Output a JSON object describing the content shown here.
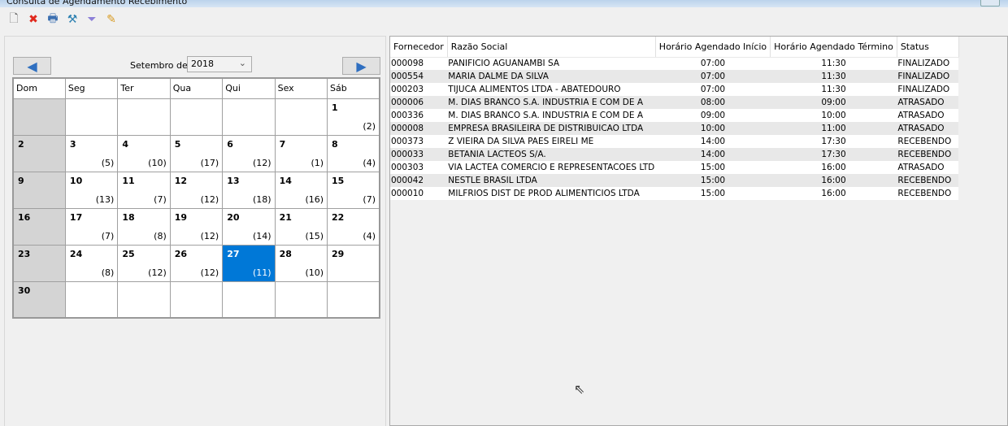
{
  "window": {
    "title": "Consulta de Agendamento Recebimento"
  },
  "toolbar": [
    {
      "icon": "new-document-icon",
      "glyph": "🗋",
      "color": "#666"
    },
    {
      "icon": "delete-icon",
      "glyph": "✖",
      "color": "#e0281c"
    },
    {
      "icon": "print-icon",
      "glyph": "🖶",
      "color": "#3b6fb0"
    },
    {
      "icon": "tools-icon",
      "glyph": "⚒",
      "color": "#2a7fb0"
    },
    {
      "icon": "filter-icon",
      "glyph": "⏷",
      "color": "#8c7fd8"
    },
    {
      "icon": "edit-icon",
      "glyph": "✎",
      "color": "#d89a20"
    }
  ],
  "calendar": {
    "month_label": "Setembro de",
    "year": "2018",
    "weekdays": [
      "Dom",
      "Seg",
      "Ter",
      "Qua",
      "Qui",
      "Sex",
      "Sáb"
    ],
    "selected_day": "27",
    "weeks": [
      [
        {
          "d": "",
          "c": ""
        },
        {
          "d": "",
          "c": ""
        },
        {
          "d": "",
          "c": ""
        },
        {
          "d": "",
          "c": ""
        },
        {
          "d": "",
          "c": ""
        },
        {
          "d": "",
          "c": ""
        },
        {
          "d": "1",
          "c": "(2)"
        }
      ],
      [
        {
          "d": "2",
          "c": ""
        },
        {
          "d": "3",
          "c": "(5)"
        },
        {
          "d": "4",
          "c": "(10)"
        },
        {
          "d": "5",
          "c": "(17)"
        },
        {
          "d": "6",
          "c": "(12)"
        },
        {
          "d": "7",
          "c": "(1)"
        },
        {
          "d": "8",
          "c": "(4)"
        }
      ],
      [
        {
          "d": "9",
          "c": ""
        },
        {
          "d": "10",
          "c": "(13)"
        },
        {
          "d": "11",
          "c": "(7)"
        },
        {
          "d": "12",
          "c": "(12)"
        },
        {
          "d": "13",
          "c": "(18)"
        },
        {
          "d": "14",
          "c": "(16)"
        },
        {
          "d": "15",
          "c": "(7)"
        }
      ],
      [
        {
          "d": "16",
          "c": ""
        },
        {
          "d": "17",
          "c": "(7)"
        },
        {
          "d": "18",
          "c": "(8)"
        },
        {
          "d": "19",
          "c": "(12)"
        },
        {
          "d": "20",
          "c": "(14)"
        },
        {
          "d": "21",
          "c": "(15)"
        },
        {
          "d": "22",
          "c": "(4)"
        }
      ],
      [
        {
          "d": "23",
          "c": ""
        },
        {
          "d": "24",
          "c": "(8)"
        },
        {
          "d": "25",
          "c": "(12)"
        },
        {
          "d": "26",
          "c": "(12)"
        },
        {
          "d": "27",
          "c": "(11)"
        },
        {
          "d": "28",
          "c": "(10)"
        },
        {
          "d": "29",
          "c": ""
        }
      ],
      [
        {
          "d": "30",
          "c": ""
        },
        {
          "d": "",
          "c": ""
        },
        {
          "d": "",
          "c": ""
        },
        {
          "d": "",
          "c": ""
        },
        {
          "d": "",
          "c": ""
        },
        {
          "d": "",
          "c": ""
        },
        {
          "d": "",
          "c": ""
        }
      ]
    ]
  },
  "table": {
    "columns": [
      "Fornecedor",
      "Razão Social",
      "Horário Agendado Início",
      "Horário Agendado Término",
      "Status"
    ],
    "rows": [
      [
        "000098",
        "PANIFICIO AGUANAMBI SA",
        "07:00",
        "11:30",
        "FINALIZADO"
      ],
      [
        "000554",
        "MARIA DALME DA SILVA",
        "07:00",
        "11:30",
        "FINALIZADO"
      ],
      [
        "000203",
        "TIJUCA ALIMENTOS LTDA - ABATEDOURO",
        "07:00",
        "11:30",
        "FINALIZADO"
      ],
      [
        "000006",
        "M. DIAS BRANCO S.A. INDUSTRIA E COM DE A",
        "08:00",
        "09:00",
        "ATRASADO"
      ],
      [
        "000336",
        "M. DIAS BRANCO S.A. INDUSTRIA E COM DE A",
        "09:00",
        "10:00",
        "ATRASADO"
      ],
      [
        "000008",
        "EMPRESA BRASILEIRA DE DISTRIBUICAO LTDA",
        "10:00",
        "11:00",
        "ATRASADO"
      ],
      [
        "000373",
        "Z VIEIRA DA SILVA PAES EIRELI ME",
        "14:00",
        "17:30",
        "RECEBENDO"
      ],
      [
        "000033",
        "BETANIA LACTEOS S/A.",
        "14:00",
        "17:30",
        "RECEBENDO"
      ],
      [
        "000303",
        "VIA LACTEA COMERCIO E REPRESENTACOES LTD",
        "15:00",
        "16:00",
        "ATRASADO"
      ],
      [
        "000042",
        "NESTLE BRASIL LTDA",
        "15:00",
        "16:00",
        "RECEBENDO"
      ],
      [
        "000010",
        "MILFRIOS DIST DE PROD ALIMENTICIOS LTDA",
        "15:00",
        "16:00",
        "RECEBENDO"
      ]
    ]
  },
  "colors": {
    "selected": "#0078d7",
    "sunday": "#d4d4d4",
    "nav_arrow": "#2f6fc0"
  }
}
